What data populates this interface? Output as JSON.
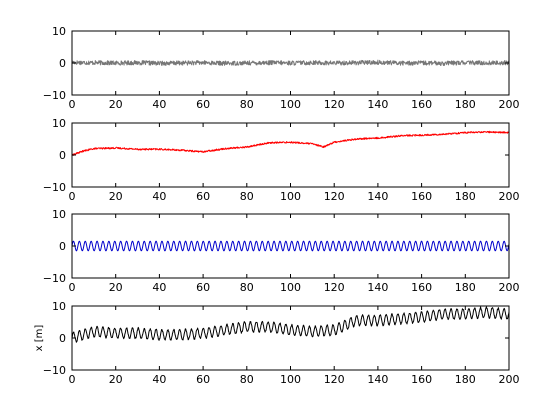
{
  "chart_data": [
    {
      "type": "line",
      "xlim": [
        0,
        200
      ],
      "ylim": [
        -10,
        10
      ],
      "x_ticks": [
        "0",
        "20",
        "40",
        "60",
        "80",
        "100",
        "120",
        "140",
        "160",
        "180",
        "200"
      ],
      "y_ticks": [
        "10",
        "0",
        "−10"
      ],
      "ylabel": "",
      "series": [
        {
          "color": "#777777",
          "description": "noise around 0",
          "x": [
            0,
            10,
            20,
            30,
            40,
            50,
            60,
            70,
            80,
            90,
            100,
            110,
            120,
            130,
            140,
            150,
            160,
            170,
            180,
            190,
            200
          ],
          "y": [
            0.2,
            0.1,
            0.0,
            0.1,
            -0.1,
            0.0,
            0.1,
            -0.1,
            0.0,
            0.1,
            0.0,
            0.1,
            0.0,
            0.1,
            0.2,
            0.0,
            0.0,
            -0.1,
            0.1,
            0.0,
            0.1
          ]
        }
      ]
    },
    {
      "type": "line",
      "xlim": [
        0,
        200
      ],
      "ylim": [
        -10,
        10
      ],
      "x_ticks": [
        "0",
        "20",
        "40",
        "60",
        "80",
        "100",
        "120",
        "140",
        "160",
        "180",
        "200"
      ],
      "y_ticks": [
        "10",
        "0",
        "−10"
      ],
      "ylabel": "",
      "series": [
        {
          "color": "#ff0000",
          "x": [
            0,
            5,
            10,
            20,
            30,
            40,
            50,
            60,
            70,
            80,
            90,
            100,
            110,
            115,
            120,
            130,
            140,
            150,
            160,
            170,
            180,
            190,
            200
          ],
          "y": [
            0.0,
            1.2,
            2.0,
            2.2,
            1.8,
            1.8,
            1.5,
            1.0,
            2.0,
            2.5,
            3.8,
            4.0,
            3.5,
            2.5,
            4.0,
            5.0,
            5.3,
            6.0,
            6.2,
            6.5,
            7.0,
            7.2,
            7.0
          ]
        }
      ]
    },
    {
      "type": "line",
      "xlim": [
        0,
        200
      ],
      "ylim": [
        -10,
        10
      ],
      "x_ticks": [
        "0",
        "20",
        "40",
        "60",
        "80",
        "100",
        "120",
        "140",
        "160",
        "180",
        "200"
      ],
      "y_ticks": [
        "10",
        "0",
        "−10"
      ],
      "ylabel": "",
      "series": [
        {
          "color": "#0000cc",
          "description": "sinusoid, amplitude ~1.5, period ~2.7",
          "x": [
            0,
            200
          ],
          "y": [
            0,
            0
          ]
        }
      ]
    },
    {
      "type": "line",
      "xlim": [
        0,
        200
      ],
      "ylim": [
        -10,
        10
      ],
      "x_ticks": [
        "0",
        "20",
        "40",
        "60",
        "80",
        "100",
        "120",
        "140",
        "160",
        "180",
        "200"
      ],
      "y_ticks": [
        "10",
        "0",
        "−10"
      ],
      "ylabel": "x [m]",
      "series": [
        {
          "color": "#000000",
          "description": "sum of drift and oscillation",
          "x": [
            0,
            10,
            20,
            30,
            40,
            50,
            60,
            70,
            80,
            90,
            100,
            110,
            120,
            130,
            140,
            150,
            160,
            170,
            180,
            190,
            200
          ],
          "y": [
            0.0,
            2.0,
            1.5,
            1.5,
            1.0,
            1.0,
            1.5,
            2.5,
            3.5,
            3.5,
            2.5,
            2.0,
            2.5,
            5.5,
            5.5,
            6.0,
            6.5,
            7.5,
            7.5,
            8.0,
            7.5
          ]
        }
      ]
    }
  ]
}
